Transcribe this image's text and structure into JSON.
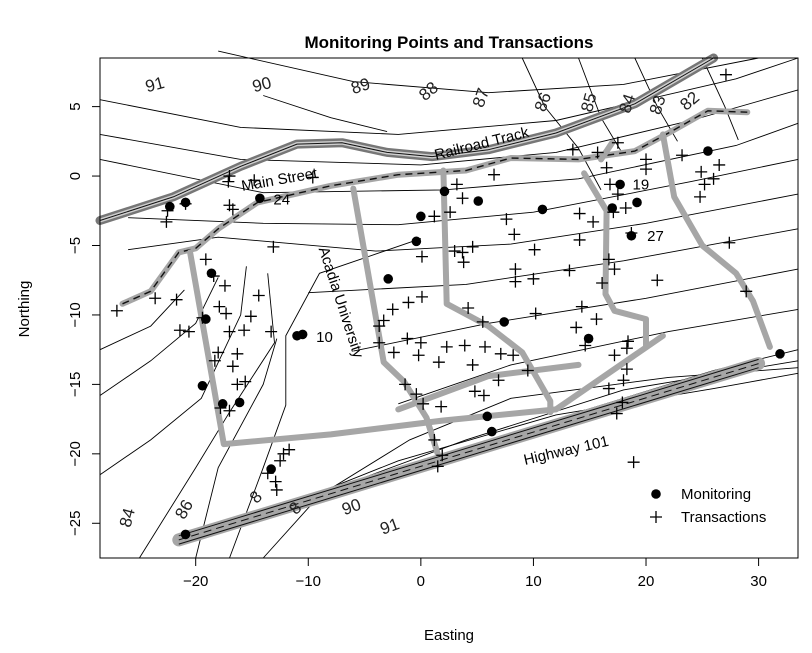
{
  "chart_data": {
    "type": "scatter",
    "title": "Monitoring Points and Transactions",
    "xlabel": "Easting",
    "ylabel": "Northing",
    "xlim": [
      -28.5,
      33.5
    ],
    "ylim": [
      -27.5,
      8.5
    ],
    "xticks": [
      -20,
      -10,
      0,
      10,
      20,
      30
    ],
    "yticks": [
      -25,
      -20,
      -15,
      -10,
      -5,
      0,
      5
    ],
    "xtick_labels": [
      "−20",
      "−10",
      "0",
      "10",
      "20",
      "30"
    ],
    "ytick_labels": [
      "−25",
      "−20",
      "−15",
      "−10",
      "−5",
      "0",
      "5"
    ],
    "legend": {
      "position": "bottom-right",
      "entries": [
        "Monitoring",
        "Transactions"
      ]
    },
    "series": [
      {
        "name": "Monitoring",
        "marker": "filled-circle",
        "points": [
          [
            -22.3,
            -2.2
          ],
          [
            -20.9,
            -1.9
          ],
          [
            -14.3,
            -1.6
          ],
          [
            -18.6,
            -7.0
          ],
          [
            -19.1,
            -10.3
          ],
          [
            -19.4,
            -15.1
          ],
          [
            -17.6,
            -16.4
          ],
          [
            -16.1,
            -16.3
          ],
          [
            -11.0,
            -11.5
          ],
          [
            -10.5,
            -11.4
          ],
          [
            -13.3,
            -21.1
          ],
          [
            -20.9,
            -25.8
          ],
          [
            -2.9,
            -7.4
          ],
          [
            -0.4,
            -4.7
          ],
          [
            0.0,
            -2.9
          ],
          [
            2.1,
            -1.1
          ],
          [
            5.1,
            -1.8
          ],
          [
            7.4,
            -10.5
          ],
          [
            5.9,
            -17.3
          ],
          [
            6.3,
            -18.4
          ],
          [
            10.8,
            -2.4
          ],
          [
            14.9,
            -11.7
          ],
          [
            17.0,
            -2.3
          ],
          [
            17.7,
            -0.6
          ],
          [
            18.7,
            -4.3
          ],
          [
            19.2,
            -1.9
          ],
          [
            25.5,
            1.8
          ],
          [
            31.9,
            -12.8
          ]
        ]
      },
      {
        "name": "Transactions",
        "marker": "plus",
        "points": [
          [
            -22.5,
            -2.5
          ],
          [
            -22.6,
            -3.3
          ],
          [
            -20.9,
            -2.0
          ],
          [
            -17.0,
            0.0
          ],
          [
            -17.1,
            -0.4
          ],
          [
            -17.0,
            -2.1
          ],
          [
            -14.8,
            -0.3
          ],
          [
            -16.7,
            -2.4
          ],
          [
            -13.1,
            -5.1
          ],
          [
            -19.1,
            -6.0
          ],
          [
            -18.4,
            -7.2
          ],
          [
            -17.4,
            -7.9
          ],
          [
            -17.9,
            -9.4
          ],
          [
            -17.3,
            -9.9
          ],
          [
            -19.4,
            -10.2
          ],
          [
            -21.7,
            -8.9
          ],
          [
            -21.4,
            -11.1
          ],
          [
            -20.6,
            -11.2
          ],
          [
            -17.0,
            -11.2
          ],
          [
            -18.0,
            -12.7
          ],
          [
            -18.3,
            -13.3
          ],
          [
            -16.3,
            -12.8
          ],
          [
            -14.4,
            -8.6
          ],
          [
            -15.1,
            -10.1
          ],
          [
            -15.7,
            -11.1
          ],
          [
            -13.3,
            -11.2
          ],
          [
            -16.7,
            -13.7
          ],
          [
            -16.3,
            -15.0
          ],
          [
            -15.6,
            -14.8
          ],
          [
            -17.8,
            -16.7
          ],
          [
            -17.0,
            -16.9
          ],
          [
            -12.5,
            -20.5
          ],
          [
            -12.2,
            -20.0
          ],
          [
            -13.6,
            -21.4
          ],
          [
            -12.9,
            -22.0
          ],
          [
            -12.8,
            -22.6
          ],
          [
            -11.7,
            -19.7
          ],
          [
            -27.0,
            -9.7
          ],
          [
            -23.6,
            -8.8
          ],
          [
            -9.6,
            -0.1
          ],
          [
            -3.7,
            -10.8
          ],
          [
            -2.5,
            -9.6
          ],
          [
            -3.3,
            -10.4
          ],
          [
            -3.7,
            -12.0
          ],
          [
            -2.4,
            -12.7
          ],
          [
            -1.2,
            -11.7
          ],
          [
            -1.4,
            -15.0
          ],
          [
            -0.4,
            -15.7
          ],
          [
            0.2,
            -16.4
          ],
          [
            0.0,
            -12.0
          ],
          [
            0.1,
            -8.7
          ],
          [
            -1.1,
            -9.1
          ],
          [
            -0.2,
            -12.9
          ],
          [
            1.6,
            -13.4
          ],
          [
            2.3,
            -12.3
          ],
          [
            1.8,
            -16.6
          ],
          [
            1.5,
            -20.9
          ],
          [
            1.9,
            -20.1
          ],
          [
            1.2,
            -19.0
          ],
          [
            4.2,
            -9.5
          ],
          [
            3.0,
            -5.4
          ],
          [
            3.7,
            -5.5
          ],
          [
            3.8,
            -6.2
          ],
          [
            4.6,
            -5.1
          ],
          [
            5.5,
            -10.5
          ],
          [
            3.9,
            -12.2
          ],
          [
            4.6,
            -13.6
          ],
          [
            4.8,
            -15.5
          ],
          [
            5.6,
            -15.8
          ],
          [
            5.7,
            -12.3
          ],
          [
            7.1,
            -12.8
          ],
          [
            6.9,
            -14.7
          ],
          [
            0.1,
            -5.8
          ],
          [
            1.2,
            -2.9
          ],
          [
            3.7,
            -1.6
          ],
          [
            3.2,
            -0.6
          ],
          [
            6.5,
            0.1
          ],
          [
            2.6,
            -2.6
          ],
          [
            7.6,
            -3.1
          ],
          [
            8.3,
            -4.2
          ],
          [
            8.4,
            -6.7
          ],
          [
            8.4,
            -7.6
          ],
          [
            10.1,
            -5.3
          ],
          [
            10.0,
            -7.4
          ],
          [
            10.2,
            -9.9
          ],
          [
            8.2,
            -12.9
          ],
          [
            9.5,
            -14.0
          ],
          [
            13.2,
            -6.8
          ],
          [
            13.8,
            -10.9
          ],
          [
            13.5,
            1.9
          ],
          [
            14.1,
            -2.7
          ],
          [
            14.1,
            -4.6
          ],
          [
            15.7,
            1.7
          ],
          [
            15.3,
            -3.3
          ],
          [
            14.3,
            -9.4
          ],
          [
            15.6,
            -10.3
          ],
          [
            14.6,
            -12.2
          ],
          [
            16.1,
            -7.7
          ],
          [
            16.7,
            -6.0
          ],
          [
            17.2,
            -6.7
          ],
          [
            16.5,
            0.6
          ],
          [
            16.8,
            -0.6
          ],
          [
            17.5,
            -1.3
          ],
          [
            17.1,
            -2.6
          ],
          [
            18.2,
            -2.3
          ],
          [
            18.7,
            -4.1
          ],
          [
            17.5,
            2.4
          ],
          [
            18.3,
            -12.4
          ],
          [
            17.2,
            -12.9
          ],
          [
            16.7,
            -15.3
          ],
          [
            17.4,
            -17.1
          ],
          [
            17.9,
            -16.3
          ],
          [
            18.9,
            -20.6
          ],
          [
            18.4,
            -11.9
          ],
          [
            18.3,
            -13.9
          ],
          [
            18.0,
            -14.7
          ],
          [
            20.0,
            0.5
          ],
          [
            21.0,
            -7.5
          ],
          [
            24.8,
            -1.5
          ],
          [
            27.4,
            -4.8
          ],
          [
            26.0,
            -0.2
          ],
          [
            23.2,
            1.5
          ],
          [
            24.9,
            0.3
          ],
          [
            25.2,
            -0.6
          ],
          [
            27.1,
            7.3
          ],
          [
            26.5,
            0.8
          ],
          [
            28.9,
            -8.3
          ],
          [
            20.0,
            1.2
          ]
        ]
      }
    ],
    "contour_labels": [
      "91",
      "90",
      "89",
      "88",
      "87",
      "86",
      "85",
      "84",
      "83",
      "82",
      "84",
      "86",
      "8",
      "8",
      "90",
      "91"
    ],
    "map_labels": {
      "railroad": "Railroad Track",
      "main_street": "Main Street",
      "acadia": "Acadia University",
      "highway": "Highway 101"
    },
    "point_labels": [
      "24",
      "10",
      "19",
      "27"
    ]
  },
  "colors": {
    "road": "#a6a6a6",
    "contour": "#000000",
    "text": "#000000",
    "background": "#ffffff"
  }
}
